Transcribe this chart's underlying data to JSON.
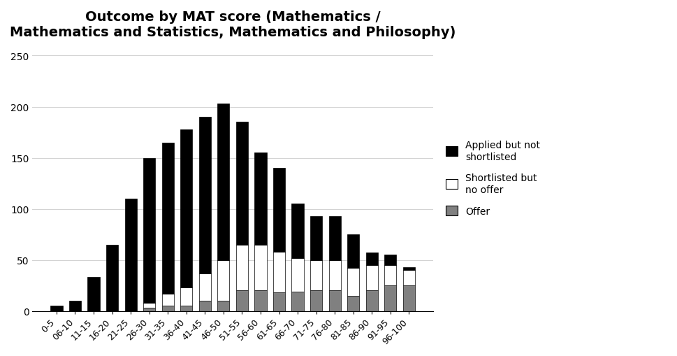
{
  "title": "Outcome by MAT score (Mathematics /\nMathematics and Statistics, Mathematics and Philosophy)",
  "categories": [
    "0-5",
    "06-10",
    "11-15",
    "16-20",
    "21-25",
    "26-30",
    "31-35",
    "36-40",
    "41-45",
    "46-50",
    "51-55",
    "56-60",
    "61-65",
    "66-70",
    "71-75",
    "76-80",
    "81-85",
    "86-90",
    "91-95",
    "96-100"
  ],
  "applied_not_shortlisted": [
    5,
    10,
    33,
    65,
    110,
    142,
    148,
    155,
    153,
    153,
    120,
    90,
    82,
    53,
    43,
    43,
    33,
    12,
    10,
    3
  ],
  "shortlisted_no_offer": [
    0,
    0,
    0,
    0,
    0,
    5,
    12,
    18,
    27,
    40,
    45,
    45,
    40,
    33,
    30,
    30,
    27,
    25,
    20,
    15
  ],
  "offer": [
    0,
    0,
    0,
    0,
    0,
    3,
    5,
    5,
    10,
    10,
    20,
    20,
    18,
    19,
    20,
    20,
    15,
    20,
    25,
    25
  ],
  "colors": {
    "applied": "#000000",
    "shortlisted": "#ffffff",
    "offer": "#808080"
  },
  "ylim": [
    0,
    260
  ],
  "yticks": [
    0,
    50,
    100,
    150,
    200,
    250
  ],
  "background_color": "#ffffff",
  "legend_labels": [
    "Applied but not shortlisted",
    "Shortlisted but\nno offer",
    "Offer"
  ],
  "title_fontsize": 14
}
